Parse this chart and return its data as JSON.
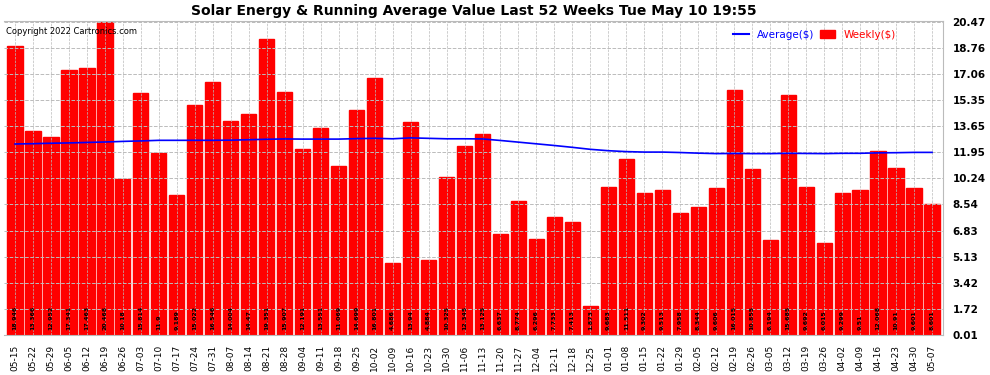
{
  "title": "Solar Energy & Running Average Value Last 52 Weeks Tue May 10 19:55",
  "copyright": "Copyright 2022 Cartronics.com",
  "bar_color": "#ff0000",
  "avg_line_color": "#0000ff",
  "background_color": "#ffffff",
  "grid_color": "#bbbbbb",
  "yticks": [
    0.01,
    1.72,
    3.42,
    5.13,
    6.83,
    8.54,
    10.24,
    11.95,
    13.65,
    15.35,
    17.06,
    18.76,
    20.47
  ],
  "categories": [
    "05-15",
    "05-22",
    "05-29",
    "06-05",
    "06-12",
    "06-19",
    "06-26",
    "07-03",
    "07-10",
    "07-17",
    "07-24",
    "07-31",
    "08-07",
    "08-14",
    "08-21",
    "08-28",
    "09-04",
    "09-11",
    "09-18",
    "09-25",
    "10-02",
    "10-09",
    "10-16",
    "10-23",
    "10-30",
    "11-06",
    "11-13",
    "11-20",
    "11-27",
    "12-04",
    "12-11",
    "12-18",
    "12-25",
    "01-01",
    "01-08",
    "01-15",
    "01-22",
    "01-29",
    "02-05",
    "02-12",
    "02-19",
    "02-26",
    "03-05",
    "03-12",
    "03-19",
    "03-26",
    "04-02",
    "04-09",
    "04-16",
    "04-23",
    "04-30",
    "05-07"
  ],
  "weekly_values": [
    18.946,
    13.366,
    12.952,
    17.341,
    17.463,
    20.468,
    10.18,
    15.814,
    11.9,
    9.189,
    15.022,
    16.546,
    14.004,
    14.47,
    19.351,
    15.907,
    12.191,
    13.551,
    11.069,
    14.699,
    16.801,
    4.686,
    13.94,
    4.884,
    10.325,
    12.345,
    13.125,
    6.637,
    8.774,
    6.296,
    7.733,
    7.413,
    1.873,
    9.683,
    11.511,
    9.302,
    9.513,
    7.958,
    8.344,
    9.606,
    16.015,
    10.855,
    6.194,
    15.685,
    9.692,
    6.015,
    9.299,
    9.51,
    12.068,
    10.91,
    9.601,
    8.601
  ],
  "avg_values": [
    12.5,
    12.52,
    12.55,
    12.57,
    12.6,
    12.63,
    12.67,
    12.7,
    12.74,
    12.74,
    12.74,
    12.74,
    12.75,
    12.78,
    12.81,
    12.83,
    12.82,
    12.82,
    12.82,
    12.85,
    12.87,
    12.84,
    12.9,
    12.87,
    12.84,
    12.84,
    12.83,
    12.73,
    12.62,
    12.51,
    12.4,
    12.28,
    12.15,
    12.06,
    12.0,
    11.97,
    11.97,
    11.94,
    11.9,
    11.87,
    11.88,
    11.87,
    11.87,
    11.89,
    11.88,
    11.87,
    11.89,
    11.89,
    11.92,
    11.93,
    11.95,
    11.95
  ]
}
